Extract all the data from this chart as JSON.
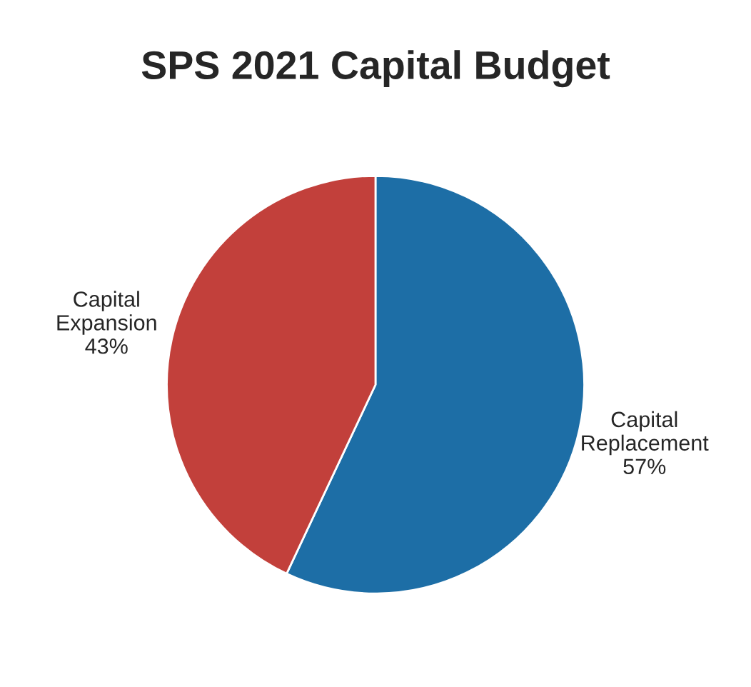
{
  "chart_data": {
    "type": "pie",
    "title": "SPS 2021 Capital Budget",
    "categories": [
      "Capital Replacement",
      "Capital Expansion"
    ],
    "values": [
      57,
      43
    ],
    "value_labels": [
      "57%",
      "43%"
    ],
    "colors": [
      "#1d6ea6",
      "#c2403b"
    ]
  }
}
